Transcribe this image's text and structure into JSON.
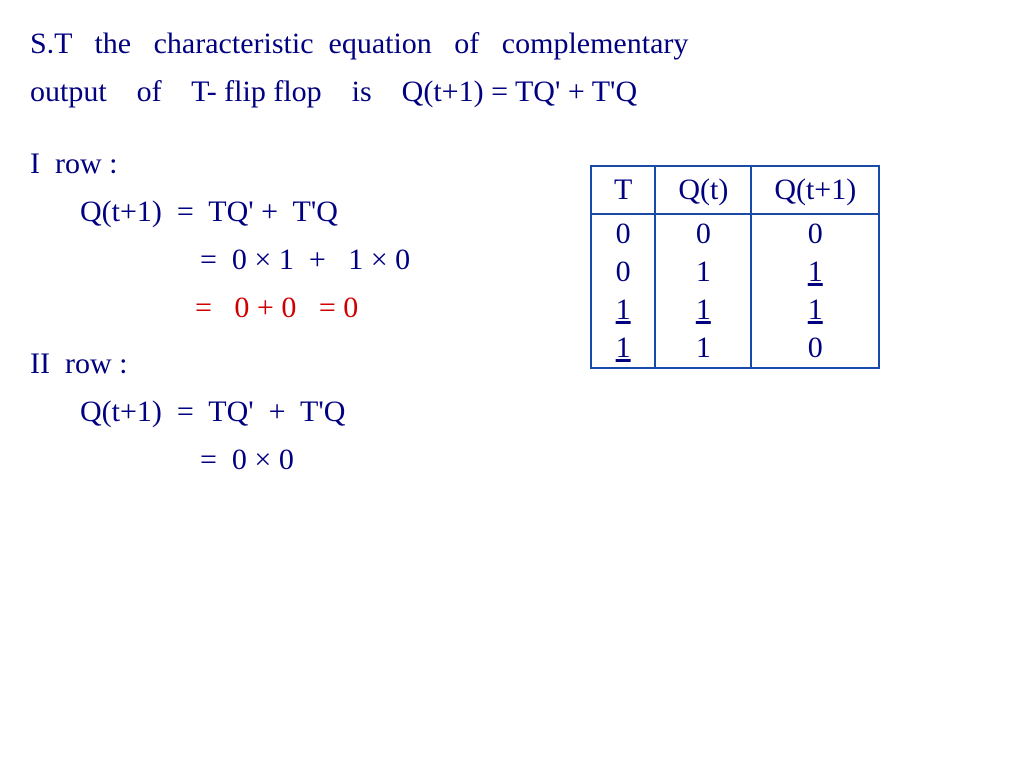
{
  "text": {
    "l1": "S.T   the   characteristic  equation   of   complementary",
    "l2": "output    of    T- flip flop    is    Q(t+1) = TQ' + T'Q",
    "l3": "I  row :",
    "l4": "Q(t+1)  =  TQ' +  T'Q",
    "l5": "=  0 × 1  +   1 × 0",
    "l6": "=   0 + 0   = 0",
    "l7": "II  row :",
    "l8": "Q(t+1)  =  TQ'  +  T'Q",
    "l9": "=  0 × 0"
  },
  "table": {
    "columns": [
      "T",
      "Q(t)",
      "Q(t+1)"
    ],
    "rows": [
      [
        "0",
        "0",
        "0"
      ],
      [
        "0",
        "1",
        "1"
      ],
      [
        "1",
        "1",
        "1"
      ],
      [
        "1",
        "1",
        "0"
      ]
    ],
    "underline": [
      [
        false,
        false,
        false
      ],
      [
        false,
        false,
        true
      ],
      [
        true,
        true,
        true
      ],
      [
        true,
        false,
        false
      ]
    ],
    "border_color": "#1a4aa8",
    "text_color": "#000080",
    "fontsize": 30
  },
  "colors": {
    "ink": "#000080",
    "highlight": "#d00000",
    "background": "#ffffff"
  }
}
